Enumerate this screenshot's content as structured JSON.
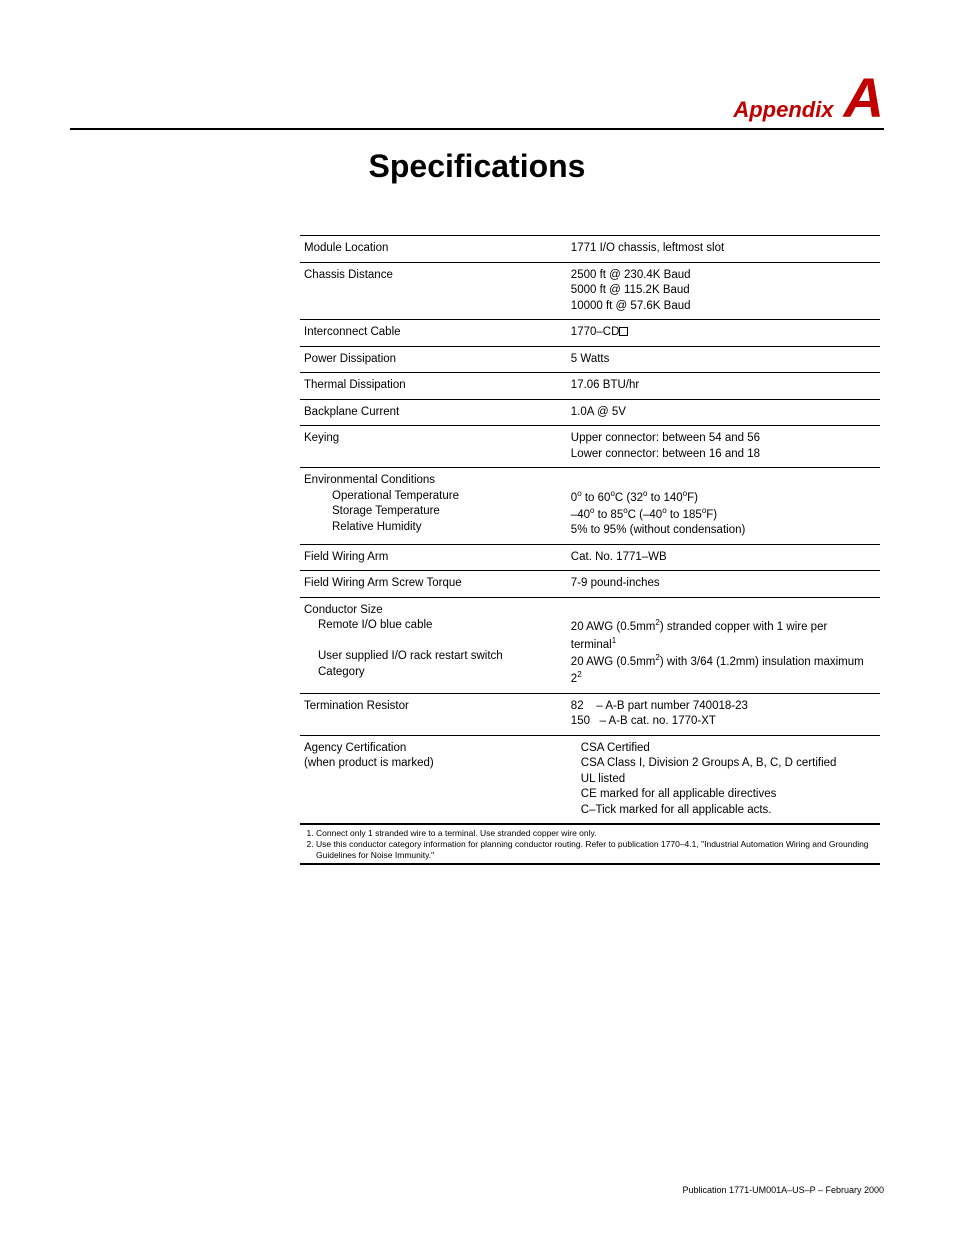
{
  "header": {
    "appendix_word": "Appendix",
    "appendix_letter": "A",
    "title": "Specifications"
  },
  "specs": [
    {
      "label_html": "Module Location",
      "value_html": "1771 I/O chassis, leftmost slot"
    },
    {
      "label_html": "Chassis Distance",
      "value_html": "2500 ft @ 230.4K Baud<br>5000 ft @ 115.2K Baud<br>10000 ft @ 57.6K Baud"
    },
    {
      "label_html": "Interconnect Cable",
      "value_html": "1770–CD<span class=\"box-placeholder\"></span>"
    },
    {
      "label_html": "Power Dissipation",
      "value_html": "5 Watts"
    },
    {
      "label_html": "Thermal Dissipation",
      "value_html": "17.06 BTU/hr"
    },
    {
      "label_html": "Backplane Current",
      "value_html": "1.0A @ 5V"
    },
    {
      "label_html": "Keying",
      "value_html": "Upper connector: between 54 and 56<br>Lower connector: between 16 and 18"
    },
    {
      "label_html": "Environmental Conditions<br><span class=\"indent1\">Operational Temperature</span><span class=\"indent1\">Storage Temperature</span><span class=\"indent1\">Relative Humidity</span>",
      "value_html": "<br>0<span class=\"sup\">o</span> to 60<span class=\"sup\">o</span>C (32<span class=\"sup\">o</span> to 140<span class=\"sup\">o</span>F)<br>–40<span class=\"sup\">o</span> to 85<span class=\"sup\">o</span>C (–40<span class=\"sup\">o</span> to 185<span class=\"sup\">o</span>F)<br>5% to 95% (without condensation)"
    },
    {
      "label_html": "Field Wiring Arm",
      "value_html": "Cat. No. 1771–WB"
    },
    {
      "label_html": "Field Wiring Arm Screw Torque",
      "value_html": "7-9 pound-inches"
    },
    {
      "label_html": "Conductor Size<br><span class=\"indent2\">Remote I/O blue cable</span><br><span class=\"indent2\">User supplied I/O rack restart switch</span><span class=\"indent2\">Category</span>",
      "value_html": "<br>20 AWG (0.5mm<span class=\"sup\">2</span>) stranded copper with 1 wire per terminal<span class=\"sup\">1</span><br>20 AWG (0.5mm<span class=\"sup\">2</span>) with 3/64 (1.2mm) insulation maximum<br>2<span class=\"sup\">2</span>"
    },
    {
      "label_html": "Termination Resistor",
      "value_html": "<span class=\"ohm-row\">82&nbsp;&nbsp;&nbsp;&nbsp;– A-B part number 740018-23</span><span class=\"ohm-row\">150&nbsp;&nbsp;&nbsp;– A-B cat. no. 1770-XT</span>"
    },
    {
      "label_html": "Agency Certification<br>(when product is marked)",
      "value_html": "<span class=\"cert-indent\">CSA Certified</span><span class=\"cert-indent\">CSA Class I, Division 2 Groups A, B, C, D certified</span><span class=\"cert-indent\">UL listed</span><span class=\"cert-indent\">CE marked for all applicable directives</span><span class=\"cert-indent\">C–Tick marked for all applicable acts.</span>"
    }
  ],
  "footnotes": [
    "Connect only 1 stranded wire to a terminal. Use stranded copper wire only.",
    "Use this conductor category information for planning conductor routing. Refer to publication 1770–4.1, \"Industrial Automation Wiring and Grounding Guidelines for Noise Immunity.\""
  ],
  "footer": "Publication 1771-UM001A–US–P – February 2000"
}
